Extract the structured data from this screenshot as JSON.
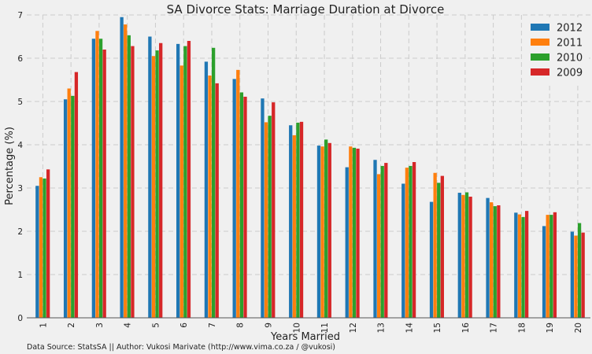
{
  "chart_data": {
    "type": "bar",
    "title": "SA Divorce Stats: Marriage Duration at Divorce",
    "xlabel": "Years Married",
    "ylabel": "Percentage (%)",
    "ylim": [
      0,
      7
    ],
    "y_ticks": [
      "0",
      "1",
      "2",
      "3",
      "4",
      "5",
      "6",
      "7"
    ],
    "grid": true,
    "legend_position": "top-right",
    "categories": [
      "1",
      "2",
      "3",
      "4",
      "5",
      "6",
      "7",
      "8",
      "9",
      "10",
      "11",
      "12",
      "13",
      "14",
      "15",
      "16",
      "17",
      "18",
      "19",
      "20"
    ],
    "series": [
      {
        "name": "2012",
        "color": "#1f77b4",
        "values": [
          3.05,
          5.05,
          6.45,
          6.95,
          6.5,
          6.33,
          5.92,
          5.52,
          5.07,
          4.45,
          3.98,
          3.48,
          3.65,
          3.1,
          2.68,
          2.89,
          2.77,
          2.43,
          2.12,
          1.99
        ]
      },
      {
        "name": "2011",
        "color": "#ff7f0e",
        "values": [
          3.25,
          5.3,
          6.63,
          6.78,
          6.05,
          5.83,
          5.6,
          5.73,
          4.52,
          4.22,
          3.96,
          3.96,
          3.32,
          3.47,
          3.35,
          2.84,
          2.67,
          2.39,
          2.38,
          1.9
        ]
      },
      {
        "name": "2010",
        "color": "#2ca02c",
        "values": [
          3.22,
          5.13,
          6.45,
          6.53,
          6.18,
          6.28,
          6.24,
          5.21,
          4.67,
          4.51,
          4.12,
          3.93,
          3.51,
          3.51,
          3.12,
          2.9,
          2.58,
          2.33,
          2.38,
          2.19
        ]
      },
      {
        "name": "2009",
        "color": "#d62728",
        "values": [
          3.43,
          5.68,
          6.2,
          6.28,
          6.35,
          6.4,
          5.42,
          5.11,
          4.98,
          4.53,
          4.04,
          3.91,
          3.58,
          3.6,
          3.28,
          2.8,
          2.6,
          2.47,
          2.44,
          1.97
        ]
      }
    ]
  },
  "footer": {
    "source_text": "Data Source: StatsSA || Author: Vukosi Marivate (http://www.vima.co.za / @vukosi)"
  }
}
